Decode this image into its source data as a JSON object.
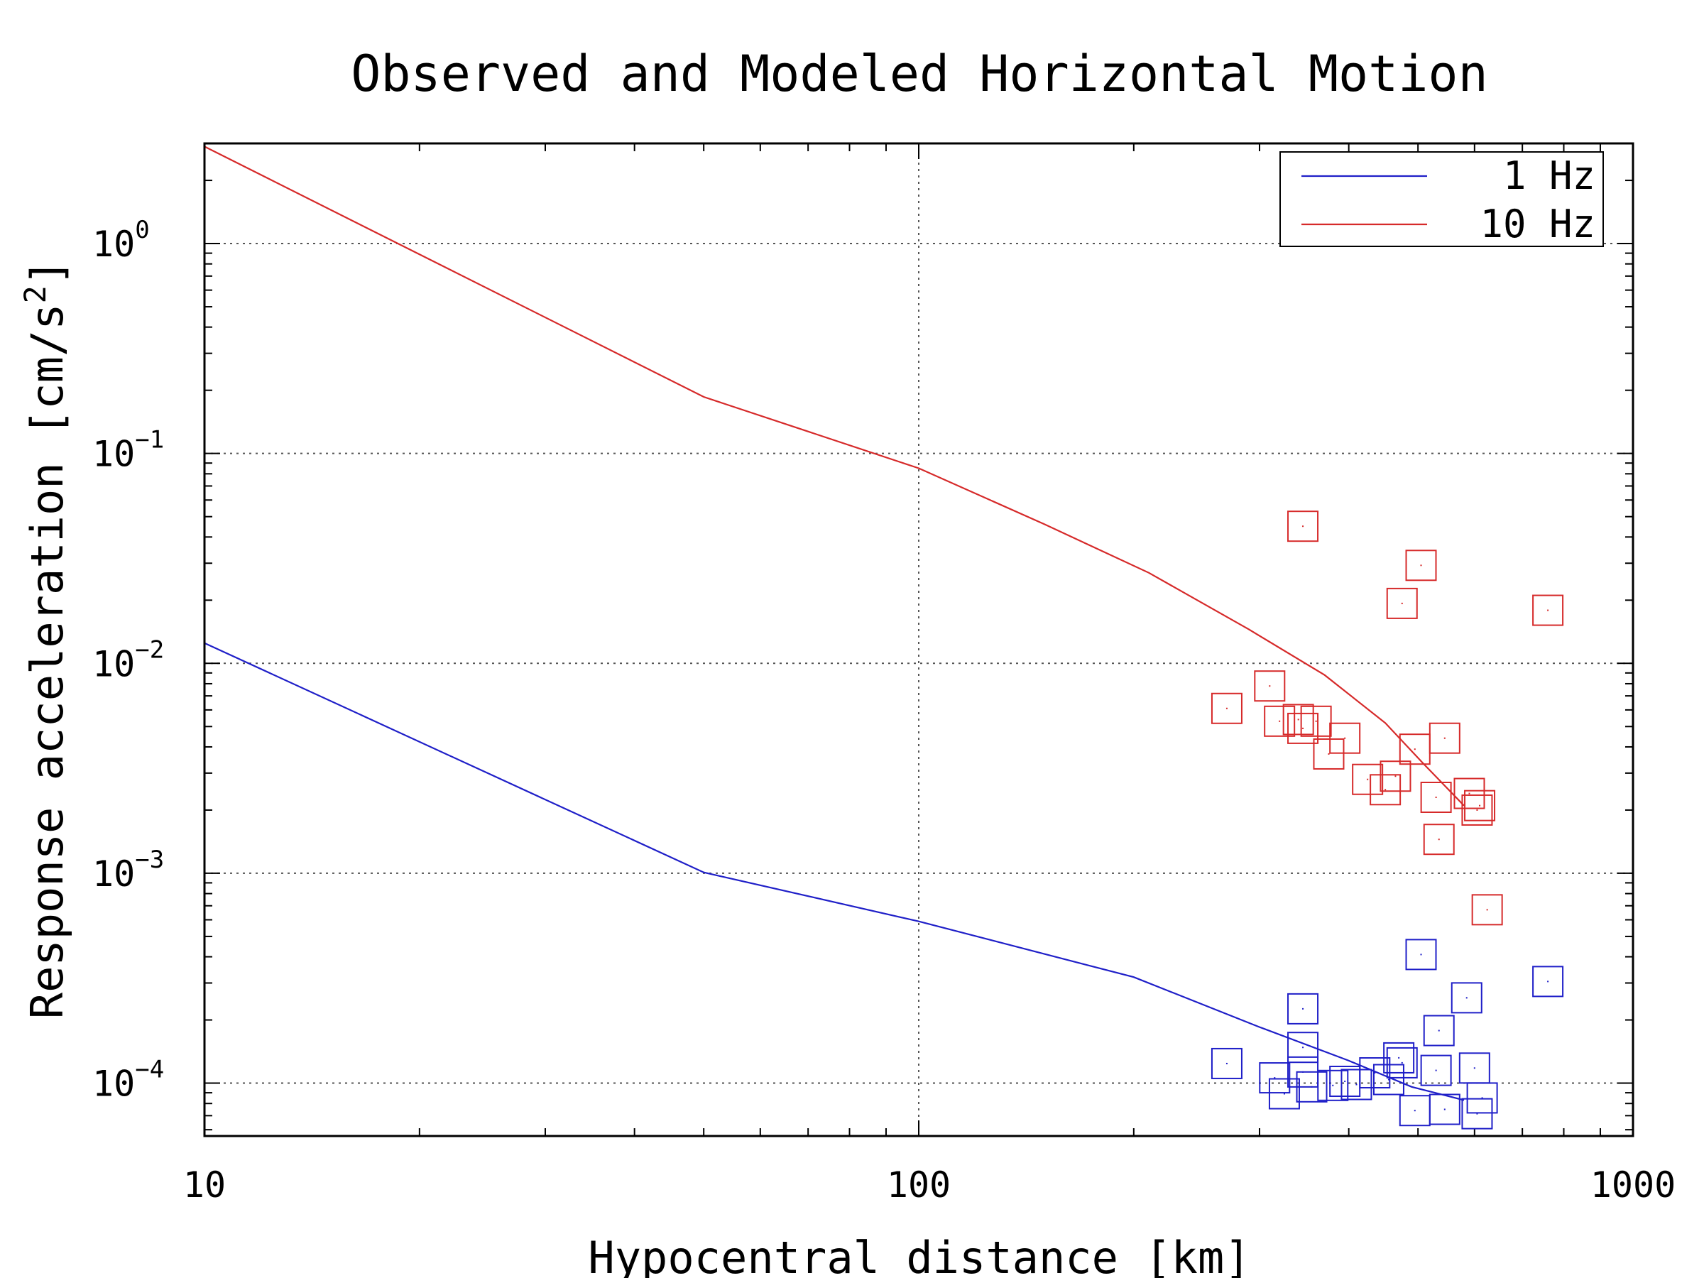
{
  "chart_data": {
    "type": "scatter",
    "title": "Observed and Modeled Horizontal Motion",
    "xlabel": "Hypocentral distance [km]",
    "ylabel_main": "Response acceleration [cm/s",
    "ylabel_sup": "2",
    "ylabel_end": "]",
    "xscale": "log",
    "yscale": "log",
    "xlim": [
      10,
      1000
    ],
    "ylim": [
      5.6e-05,
      3.0
    ],
    "grid": true,
    "legend_position": "top-right",
    "x_ticks": [
      {
        "value": 10,
        "label": "10"
      },
      {
        "value": 100,
        "label": "100"
      },
      {
        "value": 1000,
        "label": "1000"
      }
    ],
    "y_ticks": [
      {
        "value": 1,
        "base": "10",
        "exp": "0"
      },
      {
        "value": 0.1,
        "base": "10",
        "exp": "−1"
      },
      {
        "value": 0.01,
        "base": "10",
        "exp": "−2"
      },
      {
        "value": 0.001,
        "base": "10",
        "exp": "−3"
      },
      {
        "value": 0.0001,
        "base": "10",
        "exp": "−4"
      }
    ],
    "series": [
      {
        "name": "1 Hz",
        "color": "#1f1fc8",
        "line": [
          [
            10,
            0.0125
          ],
          [
            50,
            0.00101
          ],
          [
            100,
            0.00059
          ],
          [
            200,
            0.00032
          ],
          [
            300,
            0.000185
          ],
          [
            400,
            0.000128
          ],
          [
            490,
            9.6e-05
          ],
          [
            580,
            8.3e-05
          ]
        ],
        "points": [
          [
            270,
            0.000124
          ],
          [
            315,
            0.000106
          ],
          [
            325,
            8.9e-05
          ],
          [
            345,
            0.000226
          ],
          [
            345,
            0.000148
          ],
          [
            345,
            0.000113
          ],
          [
            355,
            9.6e-05
          ],
          [
            380,
            9.75e-05
          ],
          [
            395,
            0.000102
          ],
          [
            410,
            9.85e-05
          ],
          [
            435,
            0.000112
          ],
          [
            455,
            0.000104
          ],
          [
            470,
            0.000132
          ],
          [
            475,
            0.000125
          ],
          [
            495,
            7.4e-05
          ],
          [
            505,
            0.00041
          ],
          [
            530,
            0.000115
          ],
          [
            535,
            0.000178
          ],
          [
            545,
            7.5e-05
          ],
          [
            585,
            0.000255
          ],
          [
            600,
            0.000118
          ],
          [
            605,
            7.15e-05
          ],
          [
            615,
            8.5e-05
          ],
          [
            760,
            0.000305
          ]
        ]
      },
      {
        "name": "10 Hz",
        "color": "#d62a2a",
        "line": [
          [
            10,
            2.9
          ],
          [
            50,
            0.186
          ],
          [
            100,
            0.085
          ],
          [
            150,
            0.046
          ],
          [
            210,
            0.027
          ],
          [
            290,
            0.0145
          ],
          [
            370,
            0.0088
          ],
          [
            450,
            0.0052
          ],
          [
            510,
            0.0033
          ],
          [
            580,
            0.0021
          ]
        ],
        "points": [
          [
            270,
            0.0061
          ],
          [
            310,
            0.0078
          ],
          [
            320,
            0.0053
          ],
          [
            340,
            0.0054
          ],
          [
            345,
            0.045
          ],
          [
            345,
            0.0049
          ],
          [
            360,
            0.0053
          ],
          [
            375,
            0.0037
          ],
          [
            395,
            0.0044
          ],
          [
            425,
            0.0028
          ],
          [
            450,
            0.0025
          ],
          [
            465,
            0.0029
          ],
          [
            475,
            0.0193
          ],
          [
            495,
            0.0039
          ],
          [
            505,
            0.0293
          ],
          [
            530,
            0.0023
          ],
          [
            535,
            0.00145
          ],
          [
            545,
            0.0044
          ],
          [
            590,
            0.0024
          ],
          [
            605,
            0.002
          ],
          [
            610,
            0.0021
          ],
          [
            625,
            0.00067
          ],
          [
            760,
            0.0179
          ]
        ]
      }
    ]
  }
}
